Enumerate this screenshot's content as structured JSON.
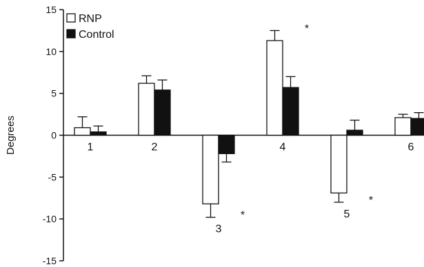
{
  "chart_data": {
    "type": "bar",
    "ylabel": "Degrees",
    "xlabel": "",
    "ylim": [
      -15,
      15
    ],
    "yticks": [
      15,
      10,
      5,
      0,
      -5,
      -10,
      -15
    ],
    "grid": false,
    "legend_position": "top-left",
    "categories": [
      "1",
      "2",
      "3",
      "4",
      "5",
      "6"
    ],
    "series": [
      {
        "name": "RNP",
        "color": "#ffffff",
        "values": [
          0.9,
          6.2,
          -8.2,
          11.3,
          -6.9,
          2.1
        ],
        "errors": [
          1.3,
          0.9,
          1.6,
          1.2,
          1.1,
          0.4
        ]
      },
      {
        "name": "Control",
        "color": "#111111",
        "values": [
          0.4,
          5.4,
          -2.2,
          5.7,
          0.6,
          2.0
        ],
        "errors": [
          0.7,
          1.2,
          1.0,
          1.3,
          1.2,
          0.7
        ]
      }
    ],
    "significance": [
      {
        "category": "3",
        "mark": "*"
      },
      {
        "category": "4",
        "mark": "*"
      },
      {
        "category": "5",
        "mark": "*"
      }
    ]
  }
}
